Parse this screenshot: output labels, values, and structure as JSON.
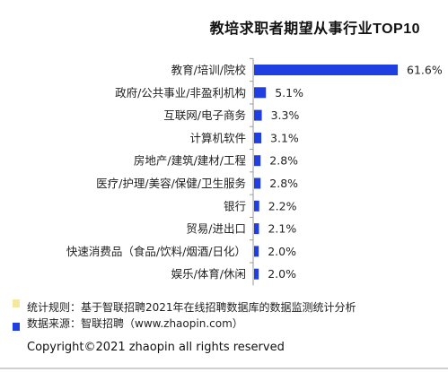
{
  "colors": {
    "bar": "#1f3fe0",
    "legend_rule_swatch": "#f5e6a0",
    "legend_source_swatch": "#1f3fe0",
    "axis": "#9a9a9a"
  },
  "legend": {
    "rule_text": "统计规则：基于智联招聘2021年在线招聘数据库的数据监测统计分析",
    "source_text": "数据来源：智联招聘（www.zhaopin.com）"
  },
  "copyright": "Copyright©2021 zhaopin all rights reserved",
  "chart_data": {
    "type": "bar",
    "orientation": "horizontal",
    "title": "教培求职者期望从事行业TOP10",
    "categories": [
      "教育/培训/院校",
      "政府/公共事业/非盈利机构",
      "互联网/电子商务",
      "计算机软件",
      "房地产/建筑/建材/工程",
      "医疗/护理/美容/保健/卫生服务",
      "银行",
      "贸易/进出口",
      "快速消费品（食品/饮料/烟酒/日化）",
      "娱乐/体育/休闲"
    ],
    "values": [
      61.6,
      5.1,
      3.3,
      3.1,
      2.8,
      2.8,
      2.2,
      2.1,
      2.0,
      2.0
    ],
    "value_labels": [
      "61.6%",
      "5.1%",
      "3.3%",
      "3.1%",
      "2.8%",
      "2.8%",
      "2.2%",
      "2.1%",
      "2.0%",
      "2.0%"
    ],
    "unit": "%",
    "xlim": [
      0,
      61.6
    ],
    "grid": false,
    "xlabel": "",
    "ylabel": ""
  }
}
